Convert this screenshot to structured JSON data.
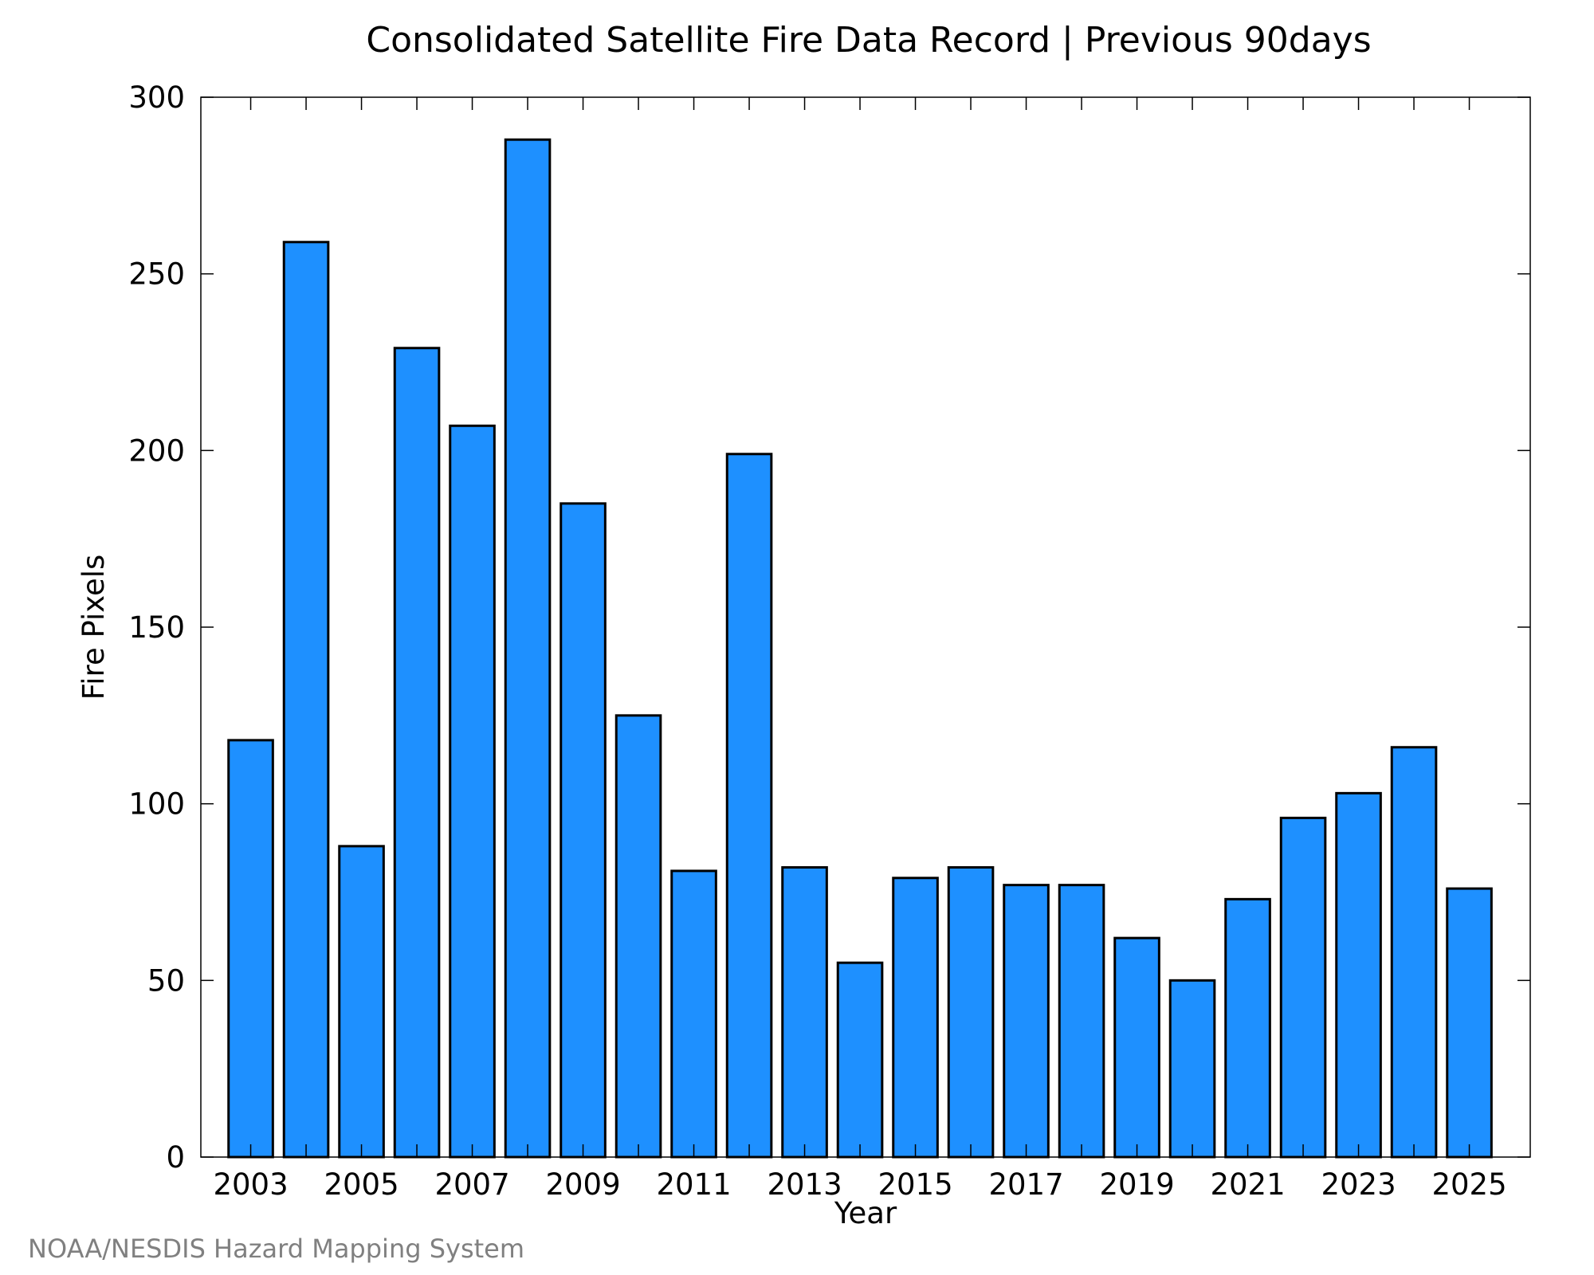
{
  "chart_data": {
    "type": "bar",
    "title": "Consolidated Satellite Fire Data Record | Previous 90days",
    "xlabel": "Year",
    "ylabel": "Fire Pixels",
    "categories": [
      "2003",
      "2004",
      "2005",
      "2006",
      "2007",
      "2008",
      "2009",
      "2010",
      "2011",
      "2012",
      "2013",
      "2014",
      "2015",
      "2016",
      "2017",
      "2018",
      "2019",
      "2020",
      "2021",
      "2022",
      "2023",
      "2024",
      "2025"
    ],
    "values": [
      118,
      259,
      88,
      229,
      207,
      288,
      185,
      125,
      81,
      199,
      82,
      55,
      79,
      82,
      77,
      77,
      62,
      50,
      73,
      96,
      103,
      116,
      76
    ],
    "ylim": [
      0,
      300
    ],
    "yticks": [
      0,
      50,
      100,
      150,
      200,
      250,
      300
    ],
    "xtick_labels": [
      "2003",
      "2005",
      "2007",
      "2009",
      "2011",
      "2013",
      "2015",
      "2017",
      "2019",
      "2021",
      "2023",
      "2025"
    ],
    "grid": false,
    "bar_color": "#1e90ff",
    "edge_color": "#000000"
  },
  "credit": "NOAA/NESDIS Hazard Mapping System"
}
